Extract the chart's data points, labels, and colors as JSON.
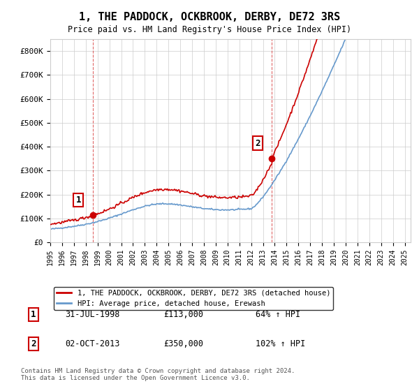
{
  "title": "1, THE PADDOCK, OCKBROOK, DERBY, DE72 3RS",
  "subtitle": "Price paid vs. HM Land Registry's House Price Index (HPI)",
  "ylabel_ticks": [
    "£0",
    "£100K",
    "£200K",
    "£300K",
    "£400K",
    "£500K",
    "£600K",
    "£700K",
    "£800K"
  ],
  "ytick_values": [
    0,
    100000,
    200000,
    300000,
    400000,
    500000,
    600000,
    700000,
    800000
  ],
  "ylim": [
    0,
    850000
  ],
  "xlim_start": 1995.0,
  "xlim_end": 2025.5,
  "sale1_x": 1998.58,
  "sale1_y": 113000,
  "sale2_x": 2013.75,
  "sale2_y": 350000,
  "sale1_label": "1",
  "sale2_label": "2",
  "legend_house_label": "1, THE PADDOCK, OCKBROOK, DERBY, DE72 3RS (detached house)",
  "legend_hpi_label": "HPI: Average price, detached house, Erewash",
  "footnote": "Contains HM Land Registry data © Crown copyright and database right 2024.\nThis data is licensed under the Open Government Licence v3.0.",
  "house_color": "#cc0000",
  "hpi_color": "#6699cc",
  "vline_color": "#cc0000",
  "background_color": "#ffffff",
  "grid_color": "#cccccc",
  "table": [
    {
      "num": "1",
      "date": "31-JUL-1998",
      "price": "£113,000",
      "hpi": "64% ↑ HPI"
    },
    {
      "num": "2",
      "date": "02-OCT-2013",
      "price": "£350,000",
      "hpi": "102% ↑ HPI"
    }
  ]
}
